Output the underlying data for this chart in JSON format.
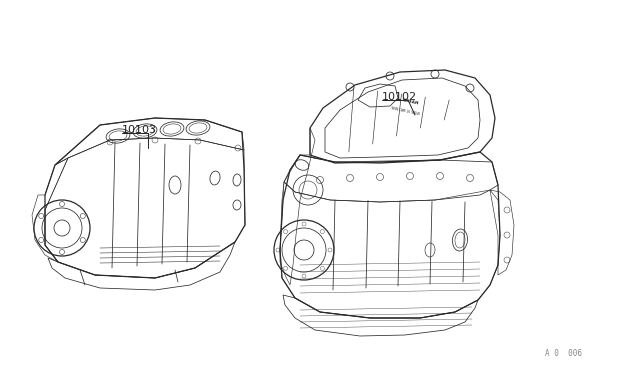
{
  "background_color": "#ffffff",
  "line_color": "#2a2a2a",
  "label_color": "#222222",
  "figure_width": 6.4,
  "figure_height": 3.72,
  "dpi": 100,
  "part1_label": "10103",
  "part2_label": "10102",
  "footer_text": "A 0  006"
}
